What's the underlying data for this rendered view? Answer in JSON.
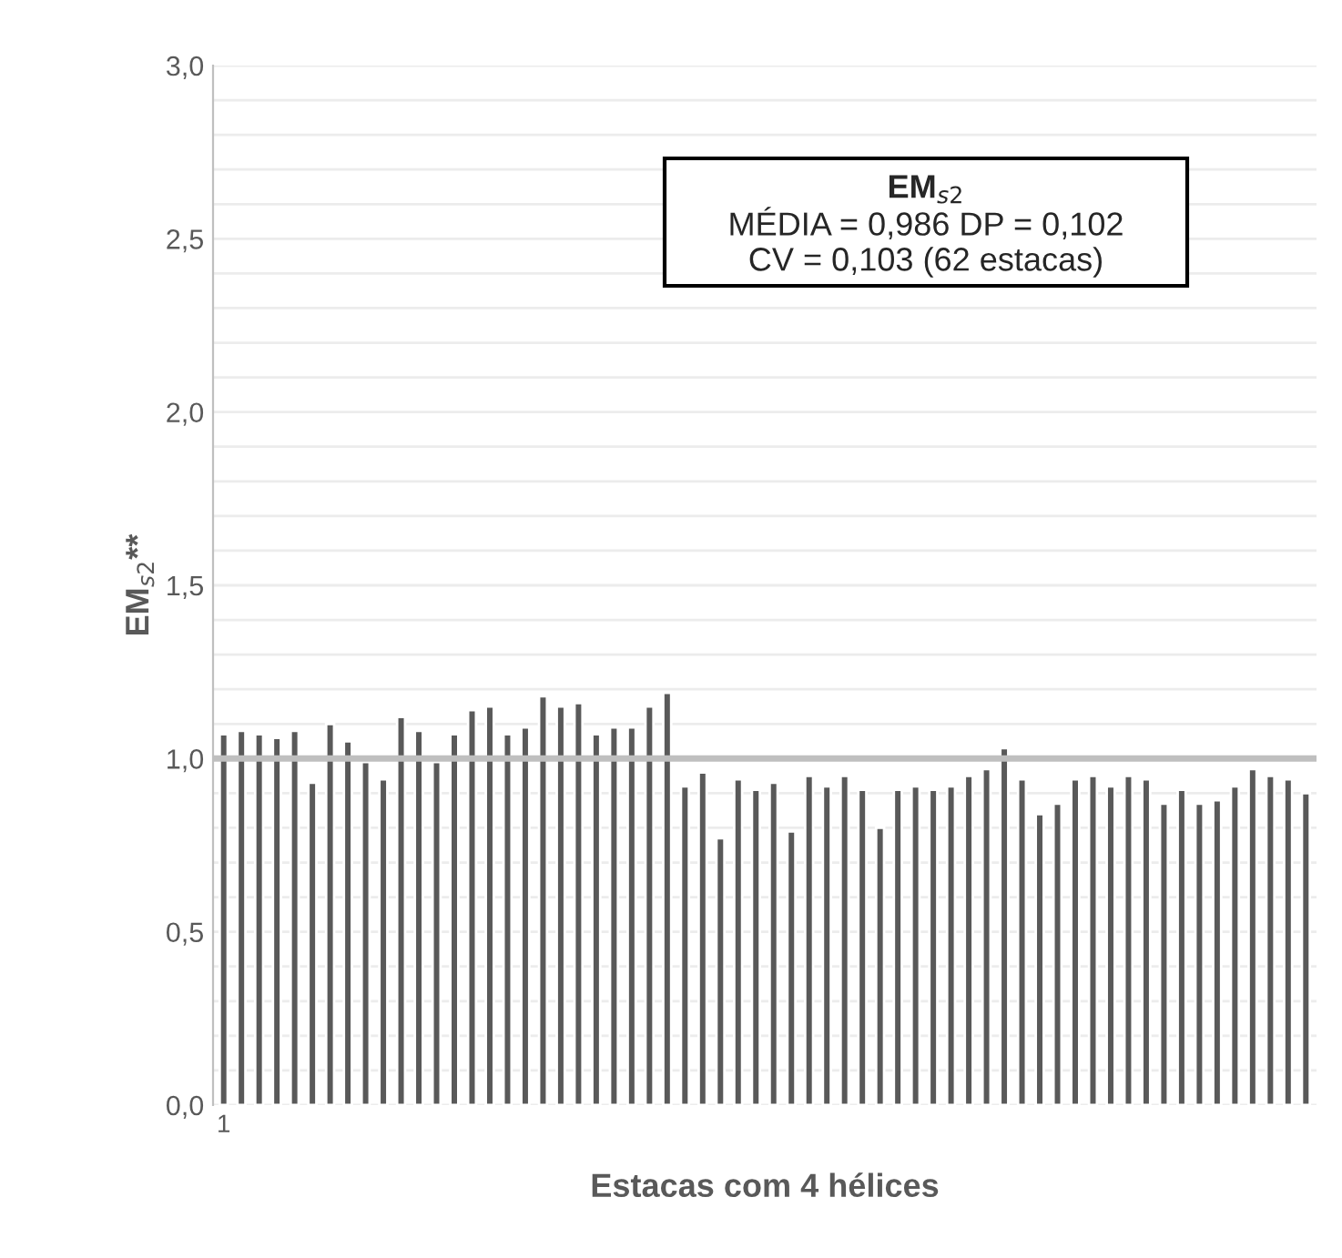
{
  "chart_data": {
    "type": "bar",
    "xlabel": "Estacas com 4 hélices",
    "ylabel": "EM$_{s2}$**",
    "categories": [
      "1",
      null,
      null,
      null,
      null,
      null,
      null,
      null,
      null,
      null,
      null,
      null,
      null,
      null,
      null,
      null,
      null,
      null,
      null,
      null,
      null,
      null,
      null,
      null,
      null,
      null,
      null,
      null,
      null,
      null,
      null,
      null,
      null,
      null,
      null,
      null,
      null,
      null,
      null,
      null,
      null,
      null,
      null,
      null,
      null,
      null,
      null,
      null,
      null,
      null,
      null,
      null,
      null,
      null,
      null,
      null,
      null,
      null,
      null,
      null,
      null,
      null
    ],
    "values": [
      1.07,
      1.08,
      1.07,
      1.06,
      1.08,
      0.93,
      1.1,
      1.05,
      0.99,
      0.94,
      1.12,
      1.08,
      0.99,
      1.07,
      1.14,
      1.15,
      1.07,
      1.09,
      1.18,
      1.15,
      1.16,
      1.07,
      1.09,
      1.09,
      1.15,
      1.19,
      0.92,
      0.96,
      0.77,
      0.94,
      0.91,
      0.93,
      0.79,
      0.95,
      0.92,
      0.95,
      0.91,
      0.8,
      0.91,
      0.92,
      0.91,
      0.92,
      0.95,
      0.97,
      1.03,
      0.94,
      0.84,
      0.87,
      0.94,
      0.95,
      0.92,
      0.95,
      0.94,
      0.87,
      0.91,
      0.87,
      0.88,
      0.92,
      0.97,
      0.95,
      0.94,
      0.9
    ],
    "color": "#595959",
    "ylim": [
      0,
      3
    ],
    "yticks": [
      {
        "value": 0,
        "label": "0,0"
      },
      {
        "value": 0.1,
        "label": null
      },
      {
        "value": 0.2,
        "label": null
      },
      {
        "value": 0.3,
        "label": null
      },
      {
        "value": 0.4,
        "label": null
      },
      {
        "value": 0.5,
        "label": "0,5"
      },
      {
        "value": 0.6,
        "label": null
      },
      {
        "value": 0.7,
        "label": null
      },
      {
        "value": 0.8,
        "label": null
      },
      {
        "value": 0.9,
        "label": null
      },
      {
        "value": 1.0,
        "label": "1,0"
      },
      {
        "value": 1.1,
        "label": null
      },
      {
        "value": 1.2,
        "label": null
      },
      {
        "value": 1.3,
        "label": null
      },
      {
        "value": 1.4,
        "label": null
      },
      {
        "value": 1.5,
        "label": "1,5"
      },
      {
        "value": 1.6,
        "label": null
      },
      {
        "value": 1.7,
        "label": null
      },
      {
        "value": 1.8,
        "label": null
      },
      {
        "value": 1.9,
        "label": null
      },
      {
        "value": 2.0,
        "label": "2,0"
      },
      {
        "value": 2.1,
        "label": null
      },
      {
        "value": 2.2,
        "label": null
      },
      {
        "value": 2.3,
        "label": null
      },
      {
        "value": 2.4,
        "label": null
      },
      {
        "value": 2.5,
        "label": "2,5"
      },
      {
        "value": 2.6,
        "label": null
      },
      {
        "value": 2.7,
        "label": null
      },
      {
        "value": 2.8,
        "label": null
      },
      {
        "value": 2.9,
        "label": null
      },
      {
        "value": 3.0,
        "label": "3,0"
      }
    ],
    "grid": "y",
    "ref_lines": [
      {
        "axis": "y",
        "value": 1.0,
        "color": "#bfbfbf"
      }
    ],
    "annotations": [
      "EM$_{s2}$",
      "MÉDIA = 0,986 DP = 0,102",
      "CV = 0,103 (62 estacas)"
    ]
  }
}
